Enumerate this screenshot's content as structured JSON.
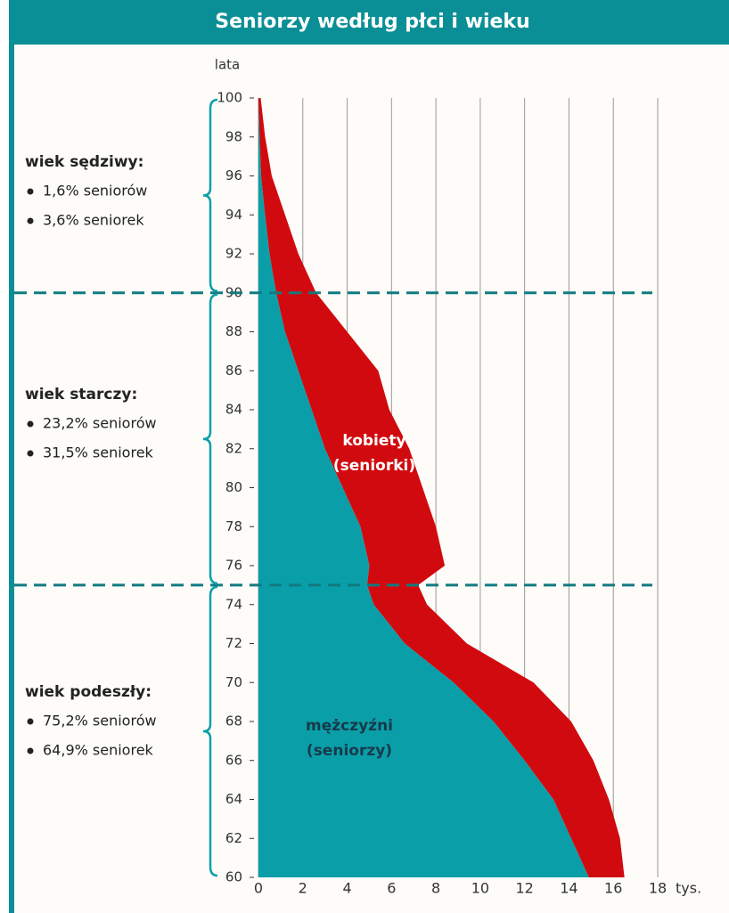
{
  "chart_data": {
    "type": "stacked-area-horizontal",
    "title": "Seniorzy według płci i wieku",
    "y_label": "lata",
    "x_unit": "tys.",
    "x": [
      60,
      62,
      64,
      66,
      68,
      70,
      72,
      74,
      75,
      76,
      78,
      80,
      82,
      84,
      86,
      88,
      90,
      92,
      94,
      96,
      98,
      100
    ],
    "series": [
      {
        "name": "mężczyźni (seniorzy)",
        "color": "#0a9fa8",
        "values": [
          14.9,
          14.1,
          13.3,
          12.0,
          10.6,
          8.8,
          6.6,
          5.2,
          4.9,
          5.0,
          4.6,
          3.8,
          3.0,
          2.4,
          1.8,
          1.2,
          0.8,
          0.5,
          0.3,
          0.12,
          0.05,
          0
        ]
      },
      {
        "name": "kobiety (seniorki)",
        "color": "#d10a0f",
        "values": [
          1.6,
          2.2,
          2.5,
          3.1,
          3.5,
          3.6,
          2.8,
          2.4,
          2.3,
          3.4,
          3.4,
          3.6,
          3.8,
          3.5,
          3.6,
          2.8,
          1.8,
          1.3,
          0.9,
          0.48,
          0.25,
          0.1
        ]
      }
    ],
    "series_labels": [
      [
        "mężczyźni",
        "(seniorzy)"
      ],
      [
        "kobiety",
        "(seniorki)"
      ]
    ],
    "xlim": [
      0,
      18
    ],
    "xticks": [
      0,
      2,
      4,
      6,
      8,
      10,
      12,
      14,
      16,
      18
    ],
    "ylim": [
      60,
      100
    ],
    "yticks": [
      60,
      62,
      64,
      66,
      68,
      70,
      72,
      74,
      76,
      78,
      80,
      82,
      84,
      86,
      88,
      90,
      92,
      94,
      96,
      98,
      100
    ],
    "grid": true,
    "thresholds": [
      90,
      75
    ],
    "groups": [
      {
        "heading": "wiek sędziwy:",
        "items": [
          "1,6% seniorów",
          "3,6% seniorek"
        ]
      },
      {
        "heading": "wiek starczy:",
        "items": [
          "23,2% seniorów",
          "31,5% seniorek"
        ]
      },
      {
        "heading": "wiek podeszły:",
        "items": [
          "75,2% seniorów",
          "64,9% seniorek"
        ]
      }
    ]
  }
}
